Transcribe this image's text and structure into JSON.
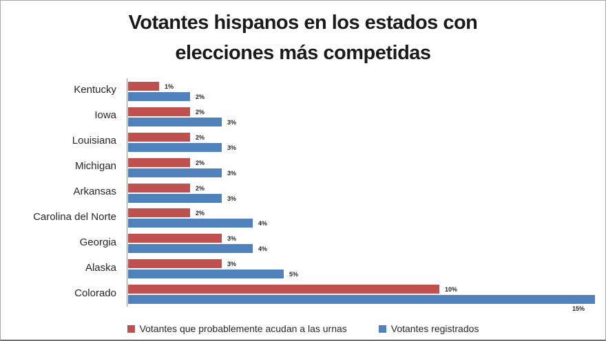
{
  "chart_data": {
    "type": "bar",
    "orientation": "horizontal",
    "title": "Votantes hispanos en los estados con elecciones más competidas",
    "title_lines": [
      "Votantes hispanos en los estados con",
      "elecciones más competidas"
    ],
    "categories": [
      "Kentucky",
      "Iowa",
      "Louisiana",
      "Michigan",
      "Arkansas",
      "Carolina del Norte",
      "Georgia",
      "Alaska",
      "Colorado"
    ],
    "series": [
      {
        "name": "Votantes que probablemente acudan a las urnas",
        "color": "#C0504D",
        "values": [
          1,
          2,
          2,
          2,
          2,
          2,
          3,
          3,
          10
        ],
        "labels": [
          "1%",
          "2%",
          "2%",
          "2%",
          "2%",
          "2%",
          "3%",
          "3%",
          "10%"
        ]
      },
      {
        "name": "Votantes registrados",
        "color": "#4F81BD",
        "values": [
          2,
          3,
          3,
          3,
          3,
          4,
          4,
          5,
          15
        ],
        "labels": [
          "2%",
          "3%",
          "3%",
          "3%",
          "3%",
          "4%",
          "4%",
          "5%",
          "15%"
        ]
      }
    ],
    "value_suffix": "%",
    "xlim": [
      0,
      15.3
    ],
    "grid": false,
    "data_labels": true,
    "legend_position": "bottom",
    "axis_color": "#8c8c8c",
    "background_color": "#ffffff",
    "text_color": "#262626"
  }
}
